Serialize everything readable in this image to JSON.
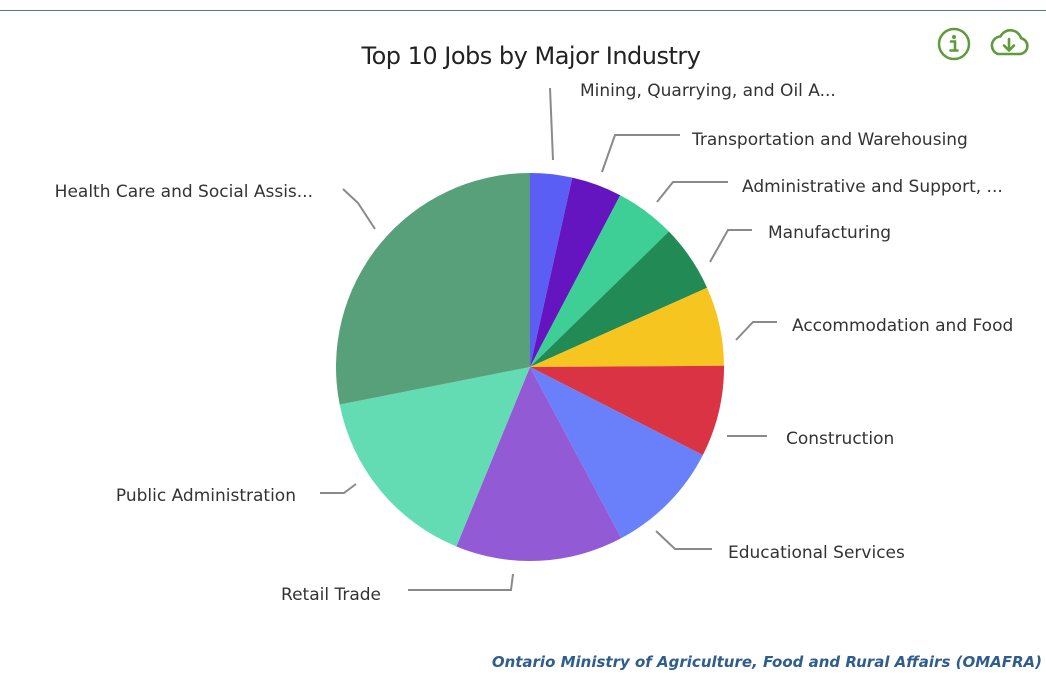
{
  "chart_data": {
    "type": "pie",
    "title": "Top 10 Jobs by Major Industry",
    "categories": [
      "Mining, Quarrying, and Oil A...",
      "Transportation and Warehousing",
      "Administrative and Support, ...",
      "Manufacturing",
      "Accommodation and Food",
      "Construction",
      "Educational Services",
      "Retail Trade",
      "Public Administration",
      "Health Care and Social Assis..."
    ],
    "values": [
      3.5,
      4.2,
      5.0,
      5.6,
      6.6,
      7.6,
      9.7,
      14.0,
      15.7,
      28.1
    ],
    "colors": [
      "#5a5ef5",
      "#6515c0",
      "#3ecf97",
      "#228a55",
      "#f6c520",
      "#da3344",
      "#6a80fa",
      "#935ad5",
      "#64dcb3",
      "#57a079"
    ],
    "start_angle_deg": 0,
    "direction": "clockwise",
    "legend": "none"
  },
  "source_text": "Ontario Ministry of Agriculture, Food and Rural Affairs (OMAFRA)",
  "icons": {
    "info": "info-icon",
    "download": "cloud-download-icon",
    "accent_color": "#5f9a3c"
  }
}
